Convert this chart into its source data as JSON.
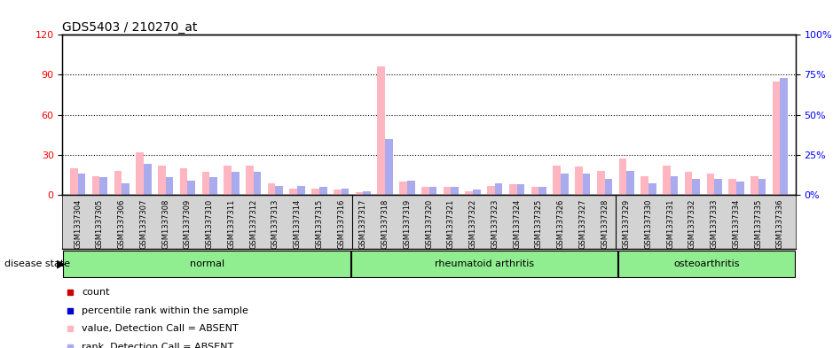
{
  "title": "GDS5403 / 210270_at",
  "samples": [
    "GSM1337304",
    "GSM1337305",
    "GSM1337306",
    "GSM1337307",
    "GSM1337308",
    "GSM1337309",
    "GSM1337310",
    "GSM1337311",
    "GSM1337312",
    "GSM1337313",
    "GSM1337314",
    "GSM1337315",
    "GSM1337316",
    "GSM1337317",
    "GSM1337318",
    "GSM1337319",
    "GSM1337320",
    "GSM1337321",
    "GSM1337322",
    "GSM1337323",
    "GSM1337324",
    "GSM1337325",
    "GSM1337326",
    "GSM1337327",
    "GSM1337328",
    "GSM1337329",
    "GSM1337330",
    "GSM1337331",
    "GSM1337332",
    "GSM1337333",
    "GSM1337334",
    "GSM1337335",
    "GSM1337336"
  ],
  "count_values": [
    20,
    14,
    18,
    32,
    22,
    20,
    17,
    22,
    22,
    9,
    5,
    5,
    4,
    2,
    96,
    10,
    6,
    6,
    3,
    7,
    8,
    6,
    22,
    21,
    18,
    27,
    14,
    22,
    17,
    16,
    12,
    14,
    85
  ],
  "rank_values": [
    16,
    13,
    9,
    23,
    13,
    11,
    13,
    17,
    17,
    7,
    7,
    6,
    5,
    3,
    42,
    11,
    6,
    6,
    4,
    9,
    8,
    6,
    16,
    16,
    12,
    18,
    9,
    14,
    12,
    12,
    10,
    12,
    88
  ],
  "groups": [
    {
      "name": "normal",
      "start": 0,
      "end": 13
    },
    {
      "name": "rheumatoid arthritis",
      "start": 13,
      "end": 25
    },
    {
      "name": "osteoarthritis",
      "start": 25,
      "end": 33
    }
  ],
  "group_boundaries": [
    0,
    13,
    25,
    33
  ],
  "left_ylim": [
    0,
    120
  ],
  "right_ylim": [
    0,
    100
  ],
  "left_yticks": [
    0,
    30,
    60,
    90,
    120
  ],
  "right_yticks": [
    0,
    25,
    50,
    75,
    100
  ],
  "count_color": "#ffb6c1",
  "rank_color": "#aaaaee",
  "count_legend_color": "#cc0000",
  "rank_legend_color": "#0000cc",
  "group_color": "#90ee90",
  "xtick_bg": "#d3d3d3",
  "plot_bg": "#ffffff",
  "dotted_line_color": "#555555",
  "bar_width": 0.35
}
